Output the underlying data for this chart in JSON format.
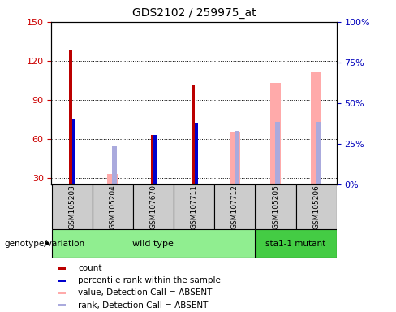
{
  "title": "GDS2102 / 259975_at",
  "samples": [
    "GSM105203",
    "GSM105204",
    "GSM107670",
    "GSM107711",
    "GSM107712",
    "GSM105205",
    "GSM105206"
  ],
  "count_values": [
    128,
    null,
    63,
    101,
    null,
    null,
    null
  ],
  "percentile_rank_left": [
    75,
    null,
    63,
    72,
    null,
    null,
    null
  ],
  "absent_value": [
    null,
    33,
    null,
    null,
    65,
    103,
    112
  ],
  "absent_rank_left": [
    null,
    54,
    null,
    null,
    66,
    73,
    73
  ],
  "ylim_left": [
    25,
    150
  ],
  "ylim_right": [
    0,
    100
  ],
  "yticks_left": [
    30,
    60,
    90,
    120,
    150
  ],
  "yticks_right": [
    0,
    25,
    50,
    75,
    100
  ],
  "left_color": "#CC0000",
  "right_color": "#0000BB",
  "count_color": "#BB0000",
  "rank_color": "#0000CC",
  "absent_value_color": "#FFAAAA",
  "absent_rank_color": "#AAAADD",
  "background_color": "#FFFFFF",
  "genotype_label": "genotype/variation",
  "wt_color": "#90EE90",
  "mut_color": "#44CC44",
  "gray_color": "#CCCCCC"
}
